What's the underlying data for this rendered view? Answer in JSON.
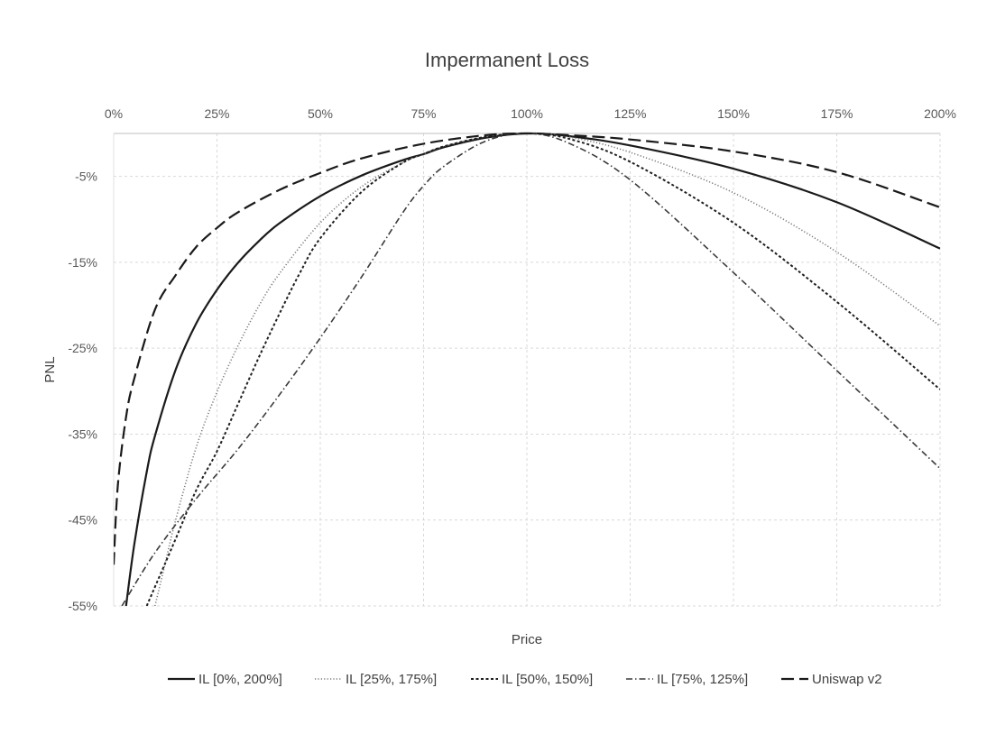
{
  "chart_data": {
    "type": "line",
    "title": "Impermanent Loss",
    "xlabel": "Price",
    "ylabel": "PNL",
    "xlim": [
      0,
      200
    ],
    "ylim": [
      -55,
      0
    ],
    "x_ticks": [
      {
        "value": 0,
        "label": "0%"
      },
      {
        "value": 25,
        "label": "25%"
      },
      {
        "value": 50,
        "label": "50%"
      },
      {
        "value": 75,
        "label": "75%"
      },
      {
        "value": 100,
        "label": "100%"
      },
      {
        "value": 125,
        "label": "125%"
      },
      {
        "value": 150,
        "label": "150%"
      },
      {
        "value": 175,
        "label": "175%"
      },
      {
        "value": 200,
        "label": "200%"
      }
    ],
    "y_ticks": [
      {
        "value": -5,
        "label": "-5%"
      },
      {
        "value": -15,
        "label": "-15%"
      },
      {
        "value": -25,
        "label": "-25%"
      },
      {
        "value": -35,
        "label": "-35%"
      },
      {
        "value": -45,
        "label": "-45%"
      },
      {
        "value": -55,
        "label": "-55%"
      }
    ],
    "grid": true,
    "x_axis_position": "top",
    "legend_position": "bottom",
    "series": [
      {
        "name": "IL [0%, 200%]",
        "style": "solid",
        "points": [
          [
            3,
            -55
          ],
          [
            5,
            -47.8
          ],
          [
            8,
            -39.4
          ],
          [
            10,
            -35.2
          ],
          [
            15,
            -27.5
          ],
          [
            20,
            -22.1
          ],
          [
            25,
            -18.2
          ],
          [
            30,
            -15.1
          ],
          [
            35,
            -12.6
          ],
          [
            40,
            -10.5
          ],
          [
            50,
            -7.3
          ],
          [
            60,
            -4.9
          ],
          [
            70,
            -3.1
          ],
          [
            75,
            -2.4
          ],
          [
            80,
            -1.6
          ],
          [
            90,
            -0.5
          ],
          [
            100,
            0
          ],
          [
            110,
            -0.3
          ],
          [
            125,
            -1.4
          ],
          [
            150,
            -4.1
          ],
          [
            175,
            -8.0
          ],
          [
            200,
            -13.4
          ]
        ]
      },
      {
        "name": "IL [25%, 175%]",
        "style": "dotted",
        "points": [
          [
            10,
            -55
          ],
          [
            12,
            -51
          ],
          [
            15,
            -45
          ],
          [
            20,
            -36.5
          ],
          [
            25,
            -30.1
          ],
          [
            30,
            -24.8
          ],
          [
            35,
            -20.2
          ],
          [
            40,
            -16.4
          ],
          [
            50,
            -10.4
          ],
          [
            60,
            -6.2
          ],
          [
            70,
            -3.4
          ],
          [
            75,
            -2.4
          ],
          [
            80,
            -1.5
          ],
          [
            90,
            -0.4
          ],
          [
            100,
            0
          ],
          [
            110,
            -0.4
          ],
          [
            125,
            -2.2
          ],
          [
            150,
            -6.9
          ],
          [
            175,
            -13.8
          ],
          [
            200,
            -22.4
          ]
        ]
      },
      {
        "name": "IL [50%, 150%]",
        "style": "dashed-short",
        "points": [
          [
            8,
            -55
          ],
          [
            15,
            -47.2
          ],
          [
            20,
            -41.5
          ],
          [
            25,
            -37
          ],
          [
            30,
            -31.6
          ],
          [
            35,
            -26.2
          ],
          [
            40,
            -21.1
          ],
          [
            45,
            -16.3
          ],
          [
            50,
            -12.2
          ],
          [
            60,
            -6.8
          ],
          [
            70,
            -3.4
          ],
          [
            75,
            -2.4
          ],
          [
            80,
            -1.5
          ],
          [
            90,
            -0.4
          ],
          [
            100,
            0
          ],
          [
            110,
            -0.6
          ],
          [
            125,
            -3.3
          ],
          [
            150,
            -10.4
          ],
          [
            175,
            -19.6
          ],
          [
            200,
            -29.8
          ]
        ]
      },
      {
        "name": "IL [75%, 125%]",
        "style": "dash-dot",
        "points": [
          [
            2,
            -55
          ],
          [
            10,
            -48.8
          ],
          [
            20,
            -42.5
          ],
          [
            30,
            -36.8
          ],
          [
            40,
            -30.5
          ],
          [
            50,
            -23.8
          ],
          [
            60,
            -16.7
          ],
          [
            70,
            -9.2
          ],
          [
            75,
            -6.1
          ],
          [
            80,
            -3.8
          ],
          [
            90,
            -0.9
          ],
          [
            100,
            0
          ],
          [
            110,
            -1.1
          ],
          [
            125,
            -5.4
          ],
          [
            150,
            -16.2
          ],
          [
            175,
            -27.6
          ],
          [
            200,
            -39.0
          ]
        ]
      },
      {
        "name": "Uniswap v2",
        "style": "dashed-long",
        "points": [
          [
            0,
            -50.2
          ],
          [
            1,
            -41
          ],
          [
            3,
            -33
          ],
          [
            5,
            -28.5
          ],
          [
            10,
            -20.5
          ],
          [
            15,
            -16.5
          ],
          [
            20,
            -13.2
          ],
          [
            25,
            -11
          ],
          [
            30,
            -9.2
          ],
          [
            40,
            -6.6
          ],
          [
            50,
            -4.6
          ],
          [
            60,
            -2.9
          ],
          [
            75,
            -1.2
          ],
          [
            90,
            -0.2
          ],
          [
            100,
            0
          ],
          [
            110,
            -0.2
          ],
          [
            125,
            -0.7
          ],
          [
            150,
            -2.1
          ],
          [
            175,
            -4.5
          ],
          [
            200,
            -8.6
          ]
        ]
      }
    ]
  }
}
